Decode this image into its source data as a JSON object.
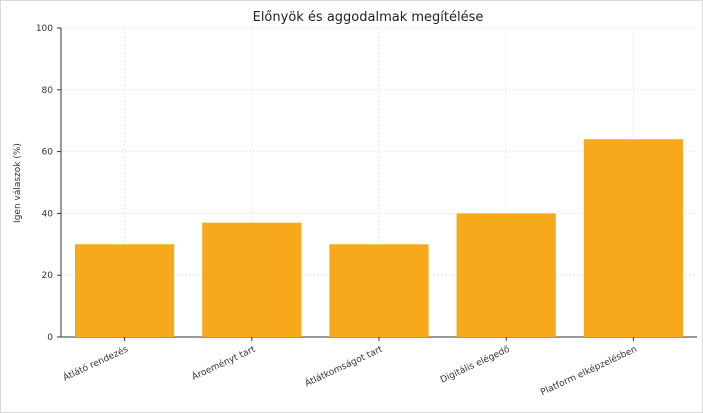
{
  "chart_data": {
    "type": "bar",
    "title": "Előnyök és aggodalmak megítélése",
    "xlabel": "",
    "ylabel": "Igen válaszok (%)",
    "categories": [
      "Átlátó rendezés",
      "Ároeményt tart",
      "Átlátkomságot tart",
      "Digitális elégedő",
      "Platform elképzelésben"
    ],
    "values": [
      30,
      37,
      30,
      40,
      64
    ],
    "ylim": [
      0,
      100
    ],
    "yticks": [
      0,
      20,
      40,
      60,
      80,
      100
    ],
    "grid": true,
    "bar_color": "#f5a91b"
  }
}
